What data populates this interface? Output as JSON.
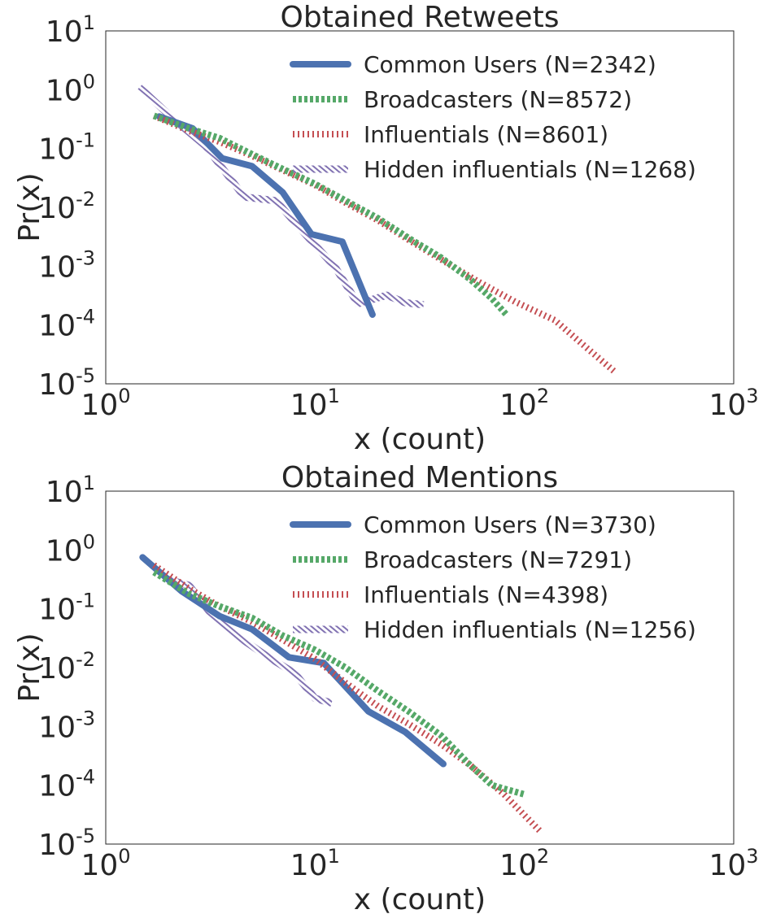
{
  "chart_data": [
    {
      "type": "line",
      "title": "Obtained Retweets",
      "xlabel": "x (count)",
      "ylabel": "Pr(x)",
      "xscale": "log",
      "yscale": "log",
      "xlim": [
        1,
        1000
      ],
      "ylim": [
        1e-05,
        10
      ],
      "grid": false,
      "legend_position": "top-right",
      "x_ticks": [
        {
          "base": "10",
          "exp": "0"
        },
        {
          "base": "10",
          "exp": "1"
        },
        {
          "base": "10",
          "exp": "2"
        },
        {
          "base": "10",
          "exp": "3"
        }
      ],
      "y_ticks": [
        {
          "base": "10",
          "exp": "-5"
        },
        {
          "base": "10",
          "exp": "-4"
        },
        {
          "base": "10",
          "exp": "-3"
        },
        {
          "base": "10",
          "exp": "-2"
        },
        {
          "base": "10",
          "exp": "-1"
        },
        {
          "base": "10",
          "exp": "0"
        },
        {
          "base": "10",
          "exp": "1"
        }
      ],
      "series": [
        {
          "name": "Common Users (N=2342)",
          "color": "#4c72b0",
          "style": "solid",
          "x": [
            1.8,
            2.6,
            3.6,
            5.0,
            7.0,
            9.6,
            13.5,
            18.8
          ],
          "y": [
            0.35,
            0.22,
            0.068,
            0.05,
            0.018,
            0.0035,
            0.0026,
            0.00015
          ]
        },
        {
          "name": "Broadcasters (N=8572)",
          "color": "#55a868",
          "style": "dotted",
          "x": [
            1.7,
            2.5,
            3.5,
            5,
            7,
            10,
            14,
            20,
            28,
            40,
            55,
            70,
            82
          ],
          "y": [
            0.36,
            0.22,
            0.15,
            0.08,
            0.045,
            0.025,
            0.013,
            0.0065,
            0.003,
            0.0014,
            0.0006,
            0.00028,
            0.00015
          ]
        },
        {
          "name": "Influentials (N=8601)",
          "color": "#c44e52",
          "style": "dashdot",
          "x": [
            1.7,
            2.5,
            3.5,
            5,
            7,
            10,
            14,
            20,
            28,
            40,
            60,
            90,
            140,
            200,
            270
          ],
          "y": [
            0.36,
            0.2,
            0.13,
            0.075,
            0.043,
            0.024,
            0.012,
            0.006,
            0.0028,
            0.0013,
            0.00055,
            0.00025,
            0.00012,
            4e-05,
            1.6e-05
          ]
        },
        {
          "name": "Hidden influentials (N=1268)",
          "color": "#8172b2",
          "style": "hatched",
          "x": [
            1.45,
            2.1,
            3.0,
            4.6,
            6.5,
            8.8,
            12.5,
            16.0,
            22.0,
            27.0,
            33.0
          ],
          "y": [
            1.1,
            0.32,
            0.11,
            0.015,
            0.013,
            0.0038,
            0.00095,
            0.00023,
            0.00032,
            0.00024,
            0.00022
          ]
        }
      ]
    },
    {
      "type": "line",
      "title": "Obtained Mentions",
      "xlabel": "x (count)",
      "ylabel": "Pr(x)",
      "xscale": "log",
      "yscale": "log",
      "xlim": [
        1,
        1000
      ],
      "ylim": [
        1e-05,
        10
      ],
      "grid": false,
      "legend_position": "top-right",
      "x_ticks": [
        {
          "base": "10",
          "exp": "0"
        },
        {
          "base": "10",
          "exp": "1"
        },
        {
          "base": "10",
          "exp": "2"
        },
        {
          "base": "10",
          "exp": "3"
        }
      ],
      "y_ticks": [
        {
          "base": "10",
          "exp": "-5"
        },
        {
          "base": "10",
          "exp": "-4"
        },
        {
          "base": "10",
          "exp": "-3"
        },
        {
          "base": "10",
          "exp": "-2"
        },
        {
          "base": "10",
          "exp": "-1"
        },
        {
          "base": "10",
          "exp": "0"
        },
        {
          "base": "10",
          "exp": "1"
        }
      ],
      "series": [
        {
          "name": "Common Users (N=3730)",
          "color": "#4c72b0",
          "style": "solid",
          "x": [
            1.5,
            2.3,
            3.5,
            5.0,
            7.5,
            11.0,
            18.0,
            27.0,
            41.0
          ],
          "y": [
            0.75,
            0.2,
            0.075,
            0.045,
            0.015,
            0.012,
            0.0018,
            0.0008,
            0.00023
          ]
        },
        {
          "name": "Broadcasters (N=7291)",
          "color": "#55a868",
          "style": "dotted",
          "x": [
            1.7,
            2.5,
            3.5,
            5,
            7,
            10,
            14,
            20,
            28,
            40,
            55,
            70,
            100
          ],
          "y": [
            0.42,
            0.18,
            0.11,
            0.07,
            0.035,
            0.02,
            0.01,
            0.004,
            0.0018,
            0.0007,
            0.00022,
            0.0001,
            7e-05
          ]
        },
        {
          "name": "Influentials (N=4398)",
          "color": "#c44e52",
          "style": "dashdot",
          "x": [
            1.7,
            2.5,
            3.5,
            5,
            7,
            10,
            14,
            20,
            28,
            40,
            55,
            80,
            120
          ],
          "y": [
            0.55,
            0.22,
            0.11,
            0.06,
            0.03,
            0.014,
            0.0055,
            0.0022,
            0.0011,
            0.0005,
            0.00022,
            7e-05,
            1.6e-05
          ]
        },
        {
          "name": "Hidden influentials (N=1256)",
          "color": "#8172b2",
          "style": "hatched",
          "x": [
            1.9,
            2.5,
            3.3,
            4.5,
            6.0,
            8.0,
            10.0,
            12.0
          ],
          "y": [
            0.33,
            0.25,
            0.07,
            0.03,
            0.015,
            0.008,
            0.003,
            0.0025
          ]
        }
      ]
    }
  ]
}
